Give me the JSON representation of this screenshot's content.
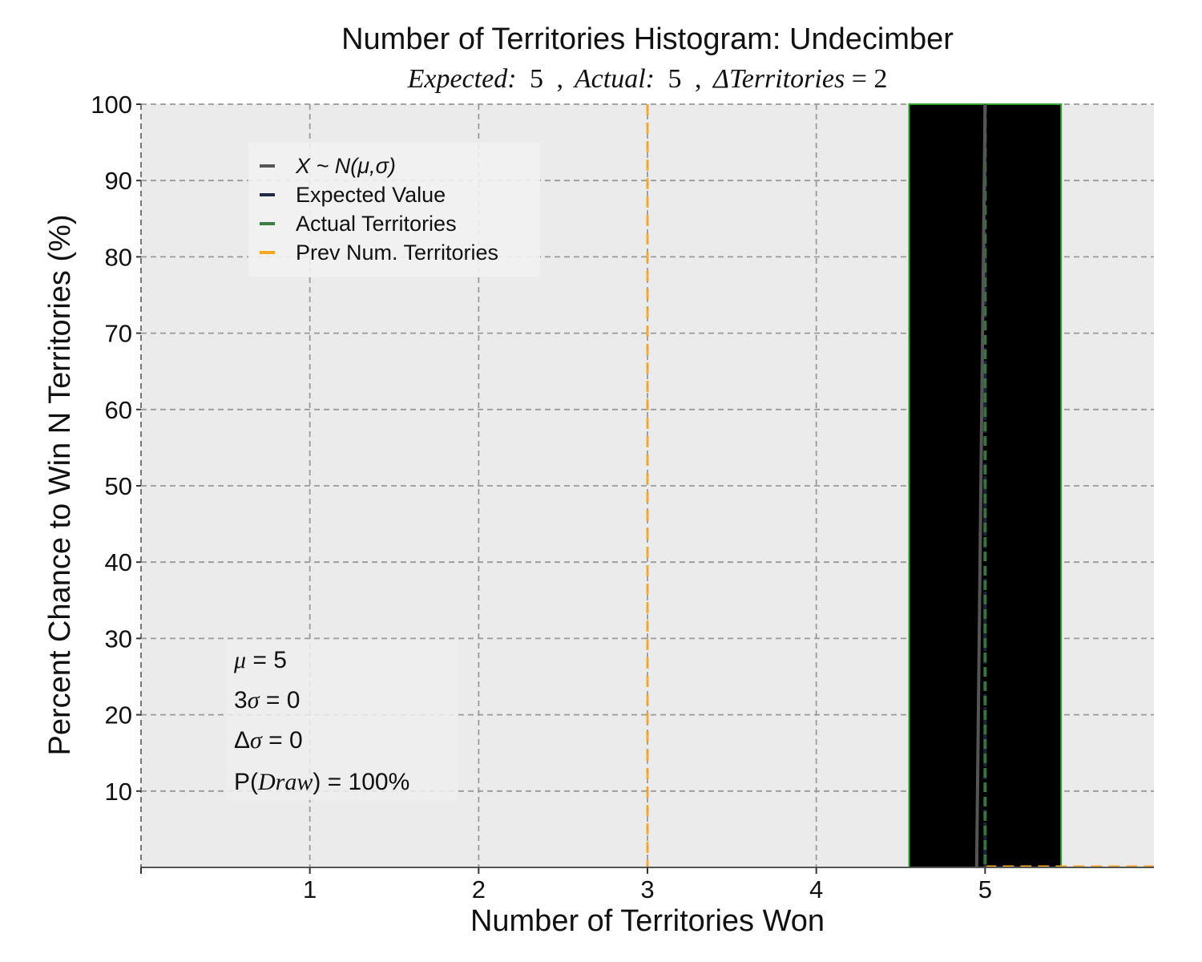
{
  "chart_data": {
    "type": "bar",
    "title": "Number of Territories Histogram: Undecimber",
    "subtitle": {
      "expected_label": "Expected:",
      "expected_value": "5",
      "actual_label": "Actual:",
      "actual_value": "5",
      "delta_label": "ΔTerritories",
      "delta_value": "= 2",
      "separator": ","
    },
    "xlabel": "Number of Territories Won",
    "ylabel": "Percent Chance to Win N Territories (%)",
    "xlim": [
      0,
      6
    ],
    "ylim": [
      0,
      100
    ],
    "x_ticks": [
      1,
      2,
      3,
      4,
      5
    ],
    "y_ticks": [
      10,
      20,
      30,
      40,
      50,
      60,
      70,
      80,
      90,
      100
    ],
    "grid": true,
    "bars": [
      {
        "x": 5,
        "value": 100,
        "width": 0.9,
        "fill": "#000000",
        "edge": "#2ca02c"
      }
    ],
    "normal_curve": {
      "points": [
        [
          4.95,
          0
        ],
        [
          5.0,
          100
        ]
      ],
      "color": "#555555"
    },
    "vlines": [
      {
        "name": "Expected Value",
        "x": 5,
        "color": "#1f2a44",
        "style": "dashed"
      },
      {
        "name": "Actual Territories",
        "x": 5,
        "color": "#3a7d44",
        "style": "dashed"
      },
      {
        "name": "Prev Num. Territories",
        "x": 3,
        "color": "#f5a623",
        "style": "dashed"
      }
    ],
    "hline": {
      "y": 0,
      "from_x": 5,
      "color": "#f5a623",
      "style": "dashed"
    },
    "legend": {
      "placement": "upper-left",
      "entries": [
        {
          "label": "X ~ N(μ,σ)",
          "color": "#555555",
          "italic": true
        },
        {
          "label": "Expected Value",
          "color": "#1f2a44",
          "italic": false
        },
        {
          "label": "Actual Territories",
          "color": "#3a7d44",
          "italic": false
        },
        {
          "label": "Prev Num. Territories",
          "color": "#f5a623",
          "italic": false
        }
      ]
    },
    "stats": {
      "placement": "lower-left",
      "mu": "5",
      "three_sigma": "0",
      "delta_sigma": "0",
      "p_draw": "100%"
    },
    "colors": {
      "plot_background": "#ebebeb",
      "grid": "#9a9a9a"
    }
  }
}
